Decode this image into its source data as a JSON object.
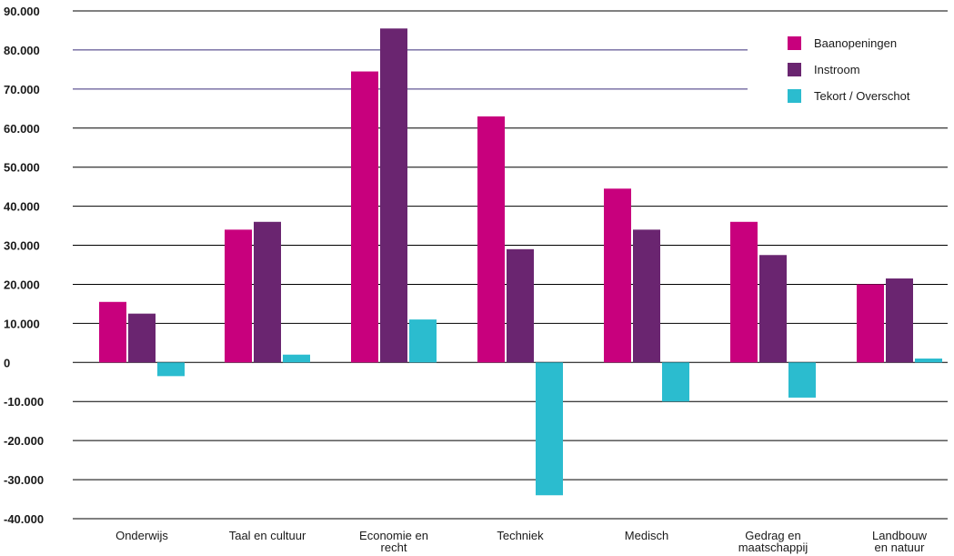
{
  "chart_data": {
    "type": "bar",
    "categories": [
      [
        "Onderwijs"
      ],
      [
        "Taal en cultuur"
      ],
      [
        "Economie en",
        "recht"
      ],
      [
        "Techniek"
      ],
      [
        "Medisch"
      ],
      [
        "Gedrag en",
        "maatschappij"
      ],
      [
        "Landbouw",
        "en natuur"
      ]
    ],
    "series": [
      {
        "name": "Baanopeningen",
        "color": "#c8007d",
        "values": [
          15500,
          34000,
          74500,
          63000,
          44500,
          36000,
          20000
        ]
      },
      {
        "name": "Instroom",
        "color": "#6a2570",
        "values": [
          12500,
          36000,
          85500,
          29000,
          34000,
          27500,
          21500
        ]
      },
      {
        "name": "Tekort / Overschot",
        "color": "#2bbccf",
        "values": [
          -3500,
          2000,
          11000,
          -34000,
          -10000,
          -9000,
          1000
        ]
      }
    ],
    "yticks": [
      "90.000",
      "80.000",
      "70.000",
      "60.000",
      "50.000",
      "40.000",
      "30.000",
      "20.000",
      "10.000",
      "0",
      "-10.000",
      "-20.000",
      "-30.000",
      "-40.000"
    ],
    "ylim": [
      -40000,
      90000
    ],
    "legend_position": "top-right",
    "grid": true,
    "gridline_color": "#000000",
    "accent_gridline_color": "#3a2d7a"
  }
}
